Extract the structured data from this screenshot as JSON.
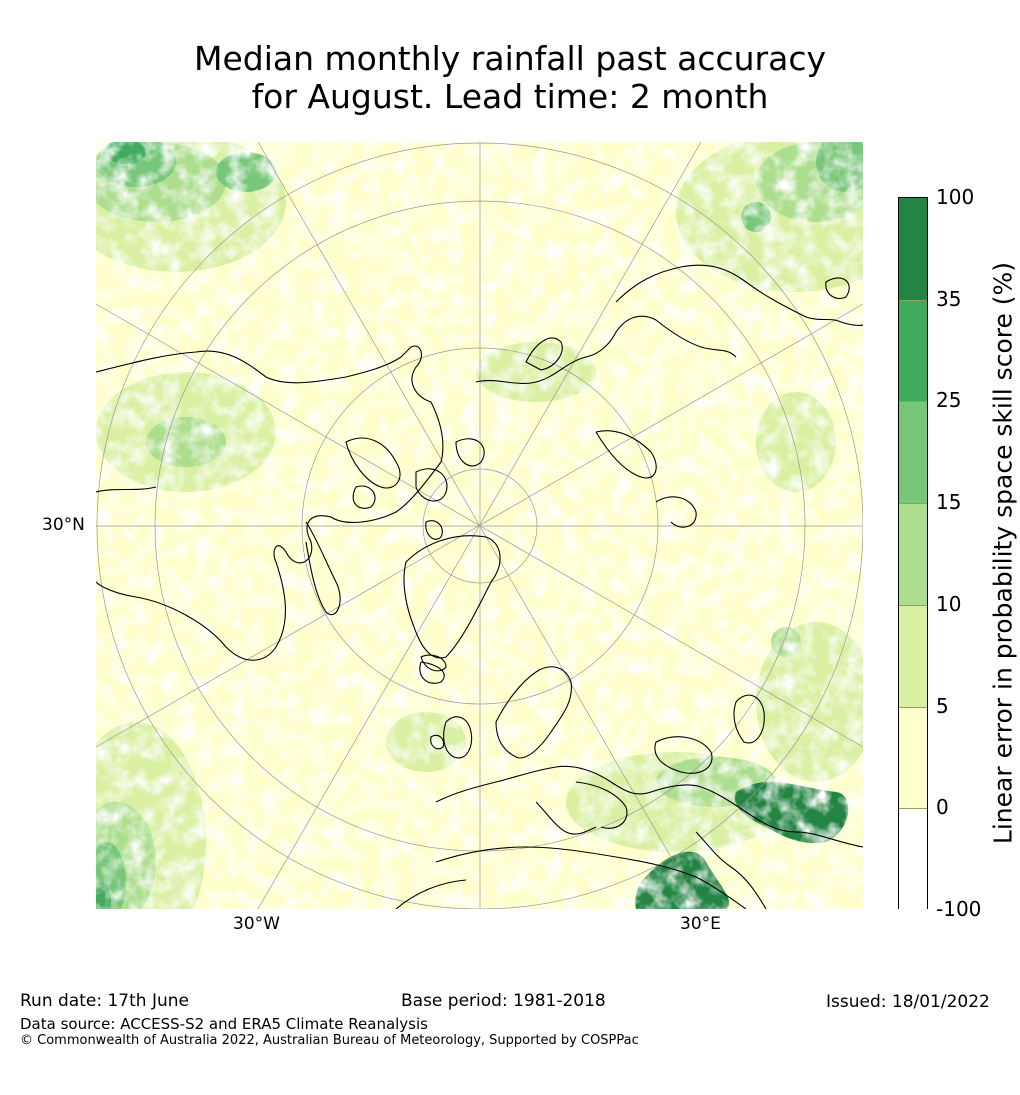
{
  "title": {
    "line1": "Median monthly rainfall past accuracy",
    "line2": "for August. Lead time: 2 month"
  },
  "map": {
    "projection": "north-polar-stereographic",
    "labels": {
      "lat_30n": "30°N",
      "lon_30w": "30°W",
      "lon_30e": "30°E"
    },
    "colors": {
      "water_and_land_low": "#ffffff",
      "c0_5": "#ffffcc",
      "c5_10": "#d9f0a3",
      "c10_15": "#addd8e",
      "c15_25": "#78c679",
      "c25_35": "#41ab5d",
      "c35_100": "#238443",
      "coastline": "#000000",
      "graticule": "#999999"
    }
  },
  "colorbar": {
    "label": "Linear error in probability space skill score (%)",
    "ticks": [
      "100",
      "35",
      "25",
      "15",
      "10",
      "5",
      "0",
      "-100"
    ],
    "bins": [
      {
        "range": "35 to 100",
        "color": "#238443"
      },
      {
        "range": "25 to 35",
        "color": "#41ab5d"
      },
      {
        "range": "15 to 25",
        "color": "#78c679"
      },
      {
        "range": "10 to 15",
        "color": "#addd8e"
      },
      {
        "range": "5 to 10",
        "color": "#d9f0a3"
      },
      {
        "range": "0 to 5",
        "color": "#ffffcc"
      },
      {
        "range": "-100 to 0",
        "color": "#ffffff"
      }
    ]
  },
  "footer": {
    "run_date": "Run date: 17th June",
    "base_period": "Base period: 1981-2018",
    "issued": "Issued: 18/01/2022",
    "data_source": "Data source: ACCESS-S2 and ERA5 Climate Reanalysis",
    "copyright": "© Commonwealth of Australia 2022, Australian Bureau of Meteorology, Supported by COSPPac"
  }
}
